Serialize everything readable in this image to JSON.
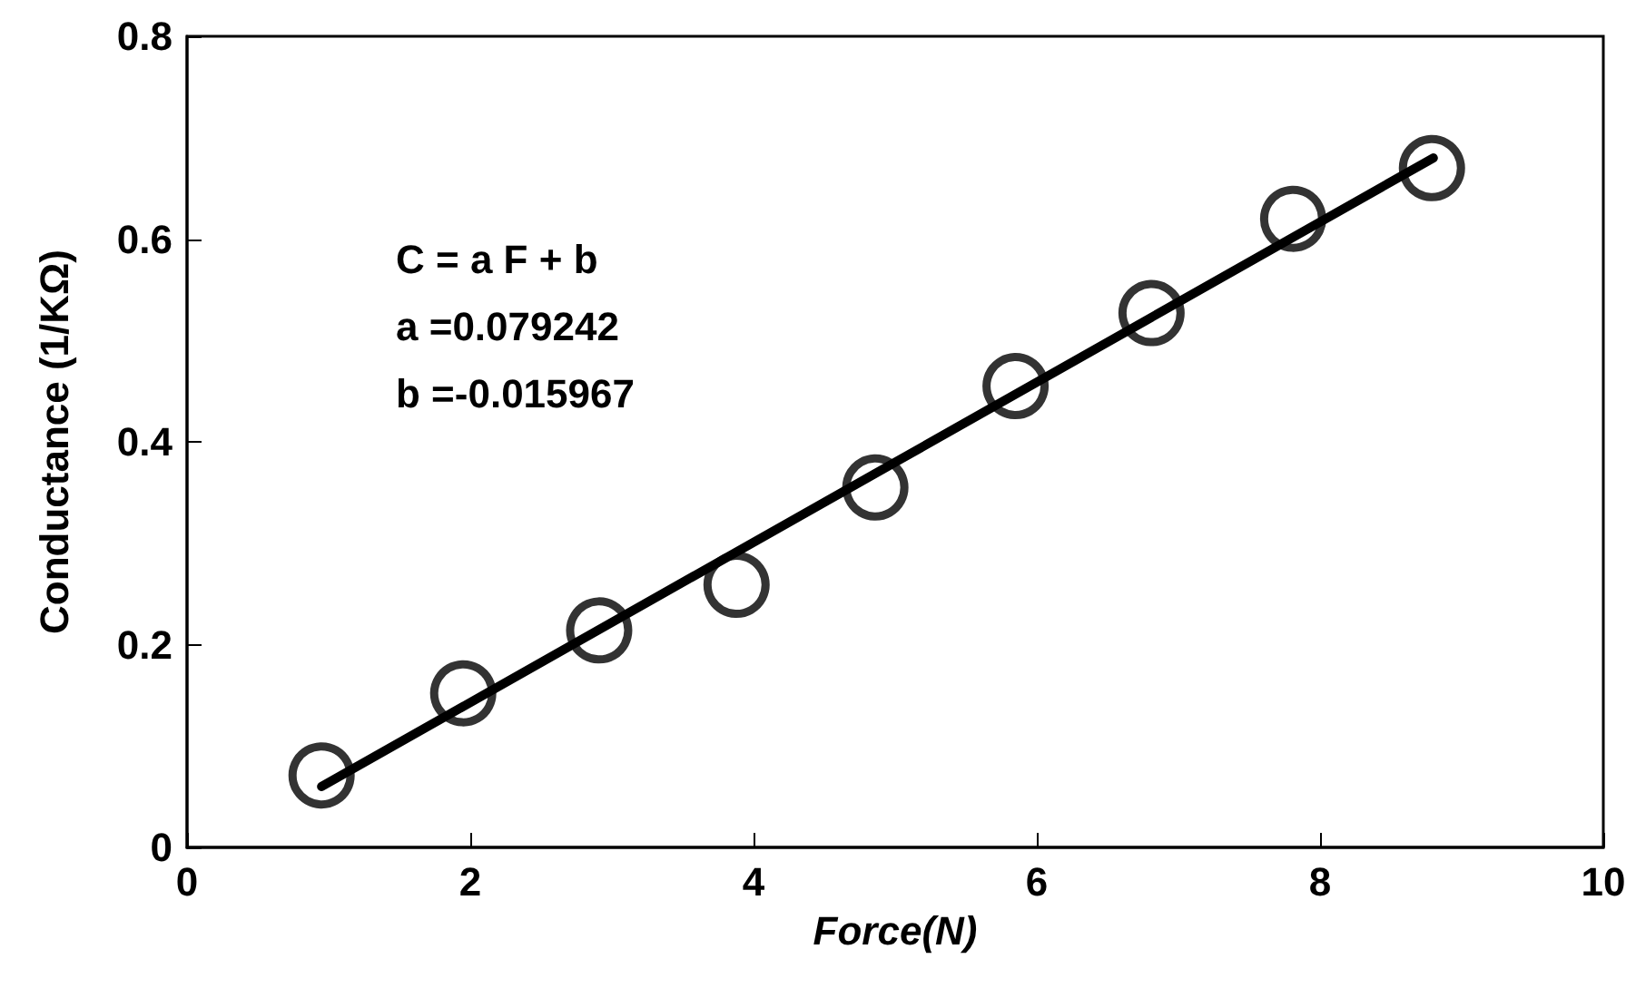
{
  "chart_data": {
    "type": "scatter",
    "xlabel": "Force(N)",
    "ylabel": "Conductance (1/KΩ)",
    "annotations": [
      "C = a F + b",
      "a =0.079242",
      "b =-0.015967"
    ],
    "xlim": [
      0,
      10
    ],
    "xticks": [
      0,
      2,
      4,
      6,
      8,
      10
    ],
    "ylim": [
      0,
      0.8
    ],
    "yticks": [
      0,
      0.2,
      0.4,
      0.6,
      0.8
    ],
    "grid": false,
    "series": [
      {
        "marker": "circle",
        "color": "#000000",
        "x": [
          0.95,
          1.95,
          2.91,
          3.88,
          4.86,
          5.85,
          6.81,
          7.81,
          8.79
        ],
        "values": [
          0.071,
          0.152,
          0.214,
          0.259,
          0.355,
          0.455,
          0.527,
          0.62,
          0.67
        ]
      },
      {
        "type": "line",
        "marker": "none",
        "line_style": "solid",
        "color": "#000000",
        "x": [
          0.95,
          8.8
        ],
        "values": [
          0.06,
          0.68
        ]
      }
    ]
  }
}
